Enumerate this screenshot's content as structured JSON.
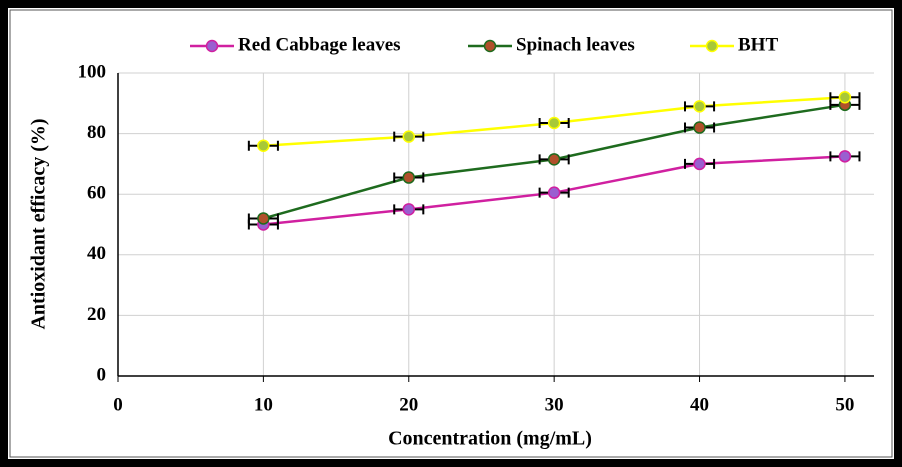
{
  "chart_data": {
    "type": "line",
    "x_label": "Concentration  (mg/mL)",
    "y_label": "Antioxidant  efficacy (%)",
    "x": [
      10,
      20,
      30,
      40,
      50
    ],
    "series": [
      {
        "name": "Red Cabbage leaves",
        "color": "#d020a0",
        "marker_color": "#9a5fd0",
        "values": [
          50,
          55,
          60.5,
          70,
          72.5
        ],
        "x_errors": [
          1,
          1,
          1,
          1,
          1
        ]
      },
      {
        "name": "Spinach leaves",
        "color": "#1e6b1e",
        "marker_color": "#b0502a",
        "values": [
          52,
          65.5,
          71.5,
          82,
          89.5
        ],
        "x_errors": [
          1,
          1,
          1,
          1,
          1
        ]
      },
      {
        "name": "BHT",
        "color": "#ffff00",
        "marker_color": "#a8c838",
        "values": [
          76,
          79,
          83.5,
          89,
          92
        ],
        "x_errors": [
          1,
          1,
          1,
          1,
          1
        ]
      }
    ],
    "xlim": [
      0,
      52
    ],
    "xticks": [
      0,
      10,
      20,
      30,
      40,
      50
    ],
    "ylim": [
      0,
      100
    ],
    "yticks": [
      0,
      20,
      40,
      60,
      80,
      100
    ],
    "grid": true,
    "legend": "top"
  }
}
